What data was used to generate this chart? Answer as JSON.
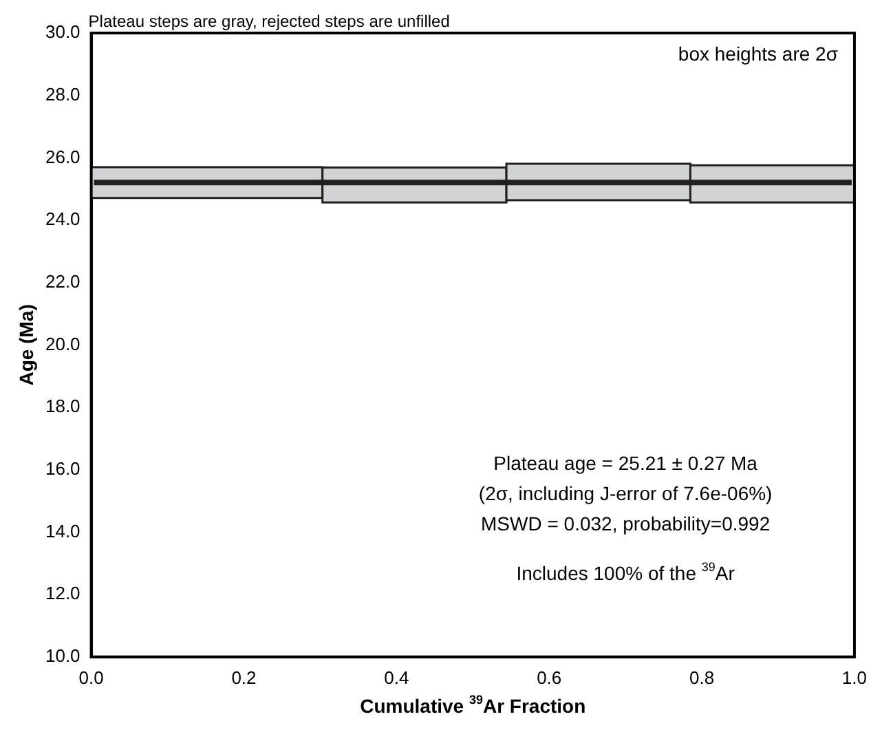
{
  "chart_data": {
    "type": "bar",
    "title": "Plateau steps are gray, rejected steps are unfilled",
    "xlabel": "Cumulative $^{39}$Ar Fraction",
    "ylabel": "Age (Ma)",
    "x": [
      0.1515,
      0.4235,
      0.6645,
      0.8925
    ],
    "base": [
      24.71,
      24.57,
      24.64,
      24.57
    ],
    "values": [
      0.99,
      1.12,
      1.17,
      1.19
    ],
    "color": "#d1d3d4",
    "xlim": [
      0,
      1.0
    ],
    "xticks": [
      {
        "value": 0,
        "label": "0.0"
      },
      {
        "value": 0.2,
        "label": "0.2"
      },
      {
        "value": 0.4,
        "label": "0.4"
      },
      {
        "value": 0.6,
        "label": "0.6"
      },
      {
        "value": 0.8,
        "label": "0.8"
      },
      {
        "value": 1.0,
        "label": "1.0"
      }
    ],
    "ylim": [
      10,
      30
    ],
    "yticks": [
      {
        "value": 10,
        "label": "10.0"
      },
      {
        "value": 12,
        "label": "12.0"
      },
      {
        "value": 14,
        "label": "14.0"
      },
      {
        "value": 16,
        "label": "16.0"
      },
      {
        "value": 18,
        "label": "18.0"
      },
      {
        "value": 20,
        "label": "20.0"
      },
      {
        "value": 22,
        "label": "22.0"
      },
      {
        "value": 24,
        "label": "24.0"
      },
      {
        "value": 26,
        "label": "26.0"
      },
      {
        "value": 28,
        "label": "28.0"
      },
      {
        "value": 30,
        "label": "30.0"
      }
    ],
    "ref_lines": [
      {
        "axis": "y",
        "value": 25.21,
        "color": "#231f20"
      }
    ],
    "annotations": [
      "box heights are 2σ",
      "Plateau age = 25.21 ± 0.27 Ma",
      "(2σ, including J-error of 7.6e-06%)",
      "MSWD = 0.032, probability=0.992",
      "Includes 100% of the $^{39}$Ar"
    ],
    "grid": false,
    "legend": false
  }
}
